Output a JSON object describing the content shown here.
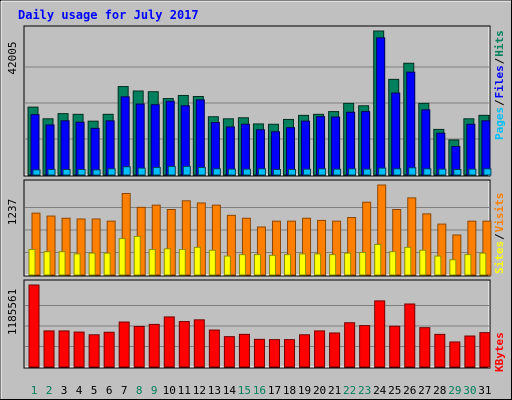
{
  "chart_data": {
    "type": "bar",
    "title": "Daily usage for July 2017",
    "days": [
      "1",
      "2",
      "3",
      "4",
      "5",
      "6",
      "7",
      "8",
      "9",
      "10",
      "11",
      "12",
      "13",
      "14",
      "15",
      "16",
      "17",
      "18",
      "19",
      "20",
      "21",
      "22",
      "23",
      "24",
      "25",
      "26",
      "27",
      "28",
      "29",
      "30",
      "31"
    ],
    "weekend_days": [
      "1",
      "2",
      "8",
      "9",
      "15",
      "16",
      "22",
      "23",
      "29",
      "30"
    ],
    "panels": [
      {
        "max_label": "42005",
        "series": [
          {
            "name": "Hits",
            "color": "#00805C",
            "values": [
              19800,
              16400,
              17900,
              17700,
              15700,
              17700,
              25800,
              24500,
              24300,
              22300,
              23200,
              22900,
              17000,
              16400,
              16700,
              14900,
              14800,
              16200,
              17400,
              17700,
              18500,
              20900,
              20200,
              42005,
              27900,
              32600,
              20900,
              13300,
              10200,
              16400,
              17400
            ]
          },
          {
            "name": "Files",
            "color": "#0000FF",
            "values": [
              17600,
              14600,
              15800,
              15400,
              13600,
              15800,
              22800,
              20700,
              20500,
              21500,
              20200,
              21900,
              15300,
              14000,
              14800,
              13200,
              12600,
              13800,
              15700,
              17000,
              16900,
              18300,
              18500,
              40000,
              23900,
              30000,
              19000,
              12200,
              8300,
              14800,
              15800
            ]
          },
          {
            "name": "Pages",
            "color": "#00BFFF",
            "values": [
              1500,
              1600,
              1600,
              1600,
              1500,
              1800,
              2400,
              2000,
              2200,
              2500,
              2500,
              2200,
              1800,
              1700,
              1700,
              1800,
              1600,
              1600,
              1700,
              1800,
              1700,
              1800,
              1700,
              2000,
              1800,
              2100,
              1800,
              1700,
              1600,
              1700,
              1800
            ]
          }
        ]
      },
      {
        "max_label": "1237",
        "series": [
          {
            "name": "Visits",
            "color": "#FF8000",
            "values": [
              850,
              810,
              780,
              770,
              770,
              740,
              1120,
              930,
              960,
              900,
              1020,
              990,
              960,
              820,
              780,
              660,
              740,
              740,
              780,
              750,
              740,
              790,
              1000,
              1237,
              900,
              1060,
              840,
              700,
              550,
              740,
              740
            ]
          },
          {
            "name": "Sites",
            "color": "#FFFF00",
            "values": [
              350,
              320,
              320,
              290,
              300,
              300,
              500,
              530,
              350,
              360,
              350,
              380,
              340,
              260,
              280,
              280,
              270,
              280,
              290,
              290,
              280,
              300,
              310,
              420,
              320,
              380,
              340,
              260,
              210,
              280,
              300
            ]
          }
        ]
      },
      {
        "max_label": "1185561",
        "series": [
          {
            "name": "KBytes",
            "color": "#FF0000",
            "values": [
              1185561,
              522000,
              522000,
              505000,
              466000,
              502000,
              650000,
              586000,
              616000,
              724000,
              657000,
              682000,
              534000,
              439000,
              472000,
              400000,
              396000,
              396000,
              466000,
              522000,
              492000,
              640000,
              599000,
              956000,
              590000,
              911000,
              569000,
              472000,
              362000,
              448000,
              497000
            ]
          }
        ]
      }
    ]
  }
}
